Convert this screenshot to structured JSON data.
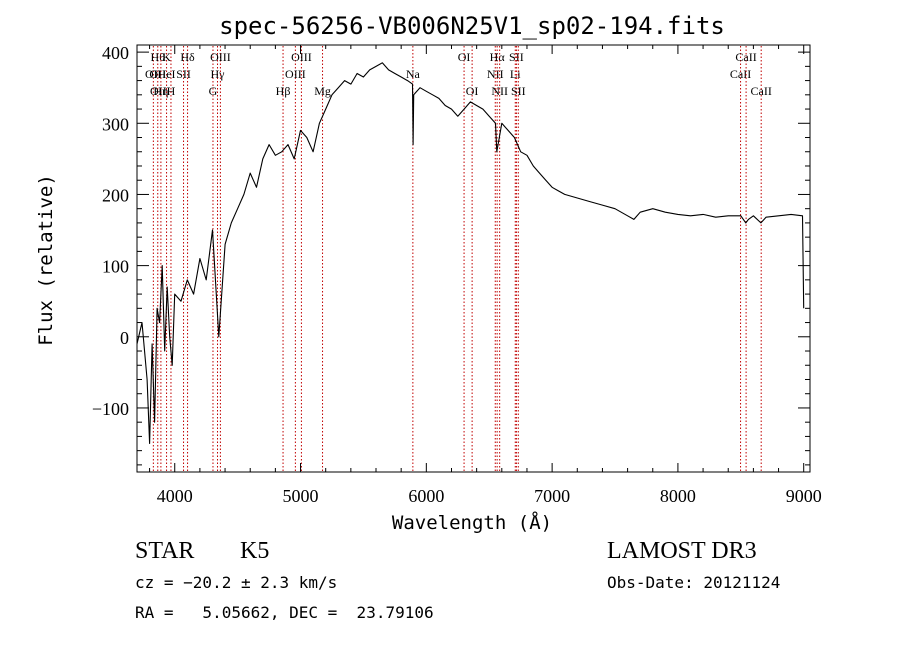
{
  "chart_data": {
    "type": "line",
    "title": "spec-56256-VB006N25V1_sp02-194.fits",
    "xlabel": "Wavelength (Å)",
    "ylabel": "Flux (relative)",
    "xlim": [
      3700,
      9050
    ],
    "ylim": [
      -190,
      410
    ],
    "x_ticks": [
      4000,
      5000,
      6000,
      7000,
      8000,
      9000
    ],
    "y_ticks": [
      -100,
      0,
      100,
      200,
      300,
      400
    ],
    "x_tick_labels": [
      "4000",
      "5000",
      "6000",
      "7000",
      "8000",
      "9000"
    ],
    "y_tick_labels": [
      "−100",
      "0",
      "100",
      "200",
      "300",
      "400"
    ],
    "line_color": "#000000",
    "marker_color": "#c00000",
    "series": [
      {
        "name": "flux",
        "x": [
          3700,
          3740,
          3780,
          3800,
          3820,
          3840,
          3860,
          3880,
          3900,
          3920,
          3940,
          3960,
          3980,
          4000,
          4050,
          4100,
          4150,
          4200,
          4250,
          4300,
          4350,
          4400,
          4450,
          4500,
          4550,
          4600,
          4650,
          4700,
          4750,
          4800,
          4850,
          4900,
          4950,
          5000,
          5050,
          5100,
          5150,
          5200,
          5250,
          5300,
          5350,
          5400,
          5450,
          5500,
          5550,
          5600,
          5650,
          5700,
          5750,
          5800,
          5850,
          5890,
          5895,
          5900,
          5950,
          6000,
          6050,
          6100,
          6150,
          6200,
          6250,
          6300,
          6350,
          6400,
          6450,
          6500,
          6550,
          6560,
          6600,
          6650,
          6700,
          6750,
          6800,
          6850,
          6900,
          6950,
          7000,
          7050,
          7100,
          7200,
          7300,
          7400,
          7500,
          7600,
          7650,
          7700,
          7800,
          7900,
          8000,
          8100,
          8200,
          8300,
          8400,
          8500,
          8540,
          8560,
          8600,
          8660,
          8700,
          8800,
          8900,
          8990,
          9000
        ],
        "values": [
          -10,
          20,
          -60,
          -150,
          -10,
          -120,
          40,
          20,
          100,
          -20,
          70,
          0,
          -40,
          60,
          50,
          80,
          60,
          110,
          80,
          150,
          0,
          130,
          160,
          180,
          200,
          230,
          210,
          250,
          270,
          255,
          260,
          270,
          250,
          290,
          280,
          260,
          300,
          320,
          340,
          350,
          360,
          355,
          370,
          365,
          375,
          380,
          385,
          375,
          370,
          365,
          360,
          355,
          270,
          340,
          350,
          345,
          340,
          335,
          325,
          320,
          310,
          320,
          330,
          325,
          320,
          310,
          300,
          260,
          300,
          290,
          280,
          260,
          255,
          240,
          230,
          220,
          210,
          205,
          200,
          195,
          190,
          185,
          180,
          170,
          165,
          175,
          180,
          175,
          172,
          170,
          172,
          168,
          170,
          170,
          160,
          165,
          170,
          160,
          168,
          170,
          172,
          170,
          40
        ]
      }
    ],
    "line_markers": [
      {
        "wavelength": 3830,
        "row": 2,
        "label": "OII"
      },
      {
        "wavelength": 3865,
        "row": 1,
        "label": "Hθ"
      },
      {
        "wavelength": 3865,
        "row": 2,
        "label": "OII"
      },
      {
        "wavelength": 3870,
        "row": 3,
        "label": "OII"
      },
      {
        "wavelength": 3890,
        "row": 3,
        "label": "Hη"
      },
      {
        "wavelength": 3935,
        "row": 1,
        "label": "K"
      },
      {
        "wavelength": 3935,
        "row": 2,
        "label": "HeI"
      },
      {
        "wavelength": 3970,
        "row": 3,
        "label": "H"
      },
      {
        "wavelength": 4070,
        "row": 2,
        "label": "SII"
      },
      {
        "wavelength": 4102,
        "row": 1,
        "label": "Hδ"
      },
      {
        "wavelength": 4304,
        "row": 3,
        "label": "G"
      },
      {
        "wavelength": 4340,
        "row": 2,
        "label": "Hγ"
      },
      {
        "wavelength": 4363,
        "row": 1,
        "label": "OIII"
      },
      {
        "wavelength": 4861,
        "row": 3,
        "label": "Hβ"
      },
      {
        "wavelength": 4959,
        "row": 2,
        "label": "OIII"
      },
      {
        "wavelength": 5007,
        "row": 1,
        "label": "OIII"
      },
      {
        "wavelength": 5175,
        "row": 3,
        "label": "Mg"
      },
      {
        "wavelength": 5893,
        "row": 2,
        "label": "Na"
      },
      {
        "wavelength": 6300,
        "row": 1,
        "label": "OI"
      },
      {
        "wavelength": 6364,
        "row": 3,
        "label": "OI"
      },
      {
        "wavelength": 6548,
        "row": 2,
        "label": "NII"
      },
      {
        "wavelength": 6563,
        "row": 1,
        "label": "Hα"
      },
      {
        "wavelength": 6583,
        "row": 3,
        "label": "NII"
      },
      {
        "wavelength": 6707,
        "row": 2,
        "label": "Li"
      },
      {
        "wavelength": 6716,
        "row": 1,
        "label": "SII"
      },
      {
        "wavelength": 6731,
        "row": 3,
        "label": "SII"
      },
      {
        "wavelength": 8498,
        "row": 2,
        "label": "CaII"
      },
      {
        "wavelength": 8542,
        "row": 1,
        "label": "CaII"
      },
      {
        "wavelength": 8662,
        "row": 3,
        "label": "CaII"
      }
    ]
  },
  "info": {
    "class": "STAR",
    "subclass": "K5",
    "cz": "cz = −20.2 ± 2.3 km/s",
    "coords": "RA =   5.05662, DEC =  23.79106",
    "survey": "LAMOST DR3",
    "obs_date": "Obs-Date: 20121124"
  }
}
